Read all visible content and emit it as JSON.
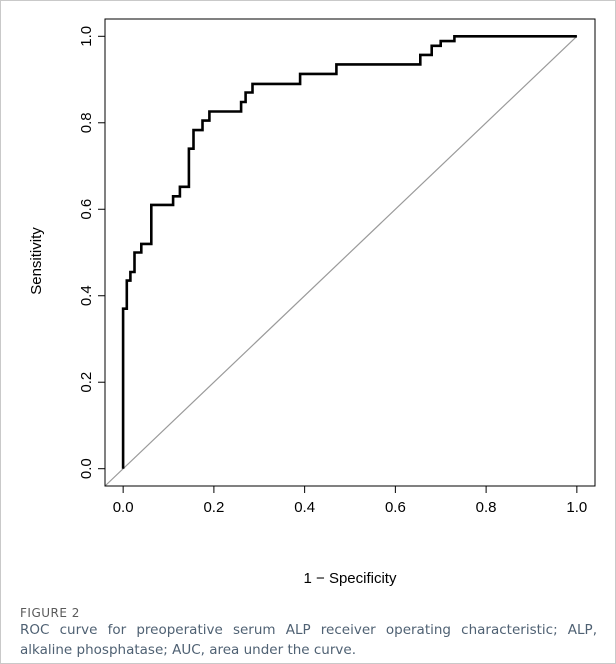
{
  "figure": {
    "label": "FIGURE 2",
    "caption": "ROC curve for preoperative serum ALP receiver operating characteristic; ALP, alkaline phosphatase; AUC, area under the curve."
  },
  "colors": {
    "roc_line": "#000000",
    "reference_line": "#9a9a9a",
    "caption_text": "#4f6173",
    "label_text": "#5a5a5a"
  },
  "chart_data": {
    "type": "line",
    "title": "",
    "xlabel": "1 − Specificity",
    "ylabel": "Sensitivity",
    "xlim": [
      -0.04,
      1.04
    ],
    "ylim": [
      -0.04,
      1.04
    ],
    "x_ticks": [
      "0.0",
      "0.2",
      "0.4",
      "0.6",
      "0.8",
      "1.0"
    ],
    "y_ticks": [
      "0.0",
      "0.2",
      "0.4",
      "0.6",
      "0.8",
      "1.0"
    ],
    "grid": false,
    "legend": "none",
    "series": [
      {
        "style": "step",
        "x": [
          0.0,
          0.0,
          0.008,
          0.008,
          0.016,
          0.016,
          0.025,
          0.025,
          0.04,
          0.04,
          0.05,
          0.05,
          0.062,
          0.062,
          0.11,
          0.11,
          0.125,
          0.125,
          0.145,
          0.145,
          0.155,
          0.155,
          0.175,
          0.175,
          0.19,
          0.19,
          0.26,
          0.26,
          0.27,
          0.27,
          0.285,
          0.285,
          0.39,
          0.39,
          0.47,
          0.47,
          0.655,
          0.655,
          0.665,
          0.665,
          0.68,
          0.68,
          0.7,
          0.7,
          0.73,
          0.73,
          1.0
        ],
        "y": [
          0.0,
          0.37,
          0.37,
          0.435,
          0.435,
          0.455,
          0.455,
          0.5,
          0.5,
          0.52,
          0.52,
          0.52,
          0.52,
          0.61,
          0.61,
          0.63,
          0.63,
          0.652,
          0.652,
          0.74,
          0.74,
          0.783,
          0.783,
          0.805,
          0.805,
          0.826,
          0.826,
          0.848,
          0.848,
          0.87,
          0.87,
          0.89,
          0.89,
          0.913,
          0.913,
          0.935,
          0.935,
          0.957,
          0.957,
          0.957,
          0.957,
          0.978,
          0.978,
          0.989,
          0.989,
          1.0,
          1.0
        ]
      },
      {
        "style": "reference",
        "x": [
          -0.04,
          1.0
        ],
        "y": [
          -0.04,
          1.0
        ]
      }
    ]
  }
}
